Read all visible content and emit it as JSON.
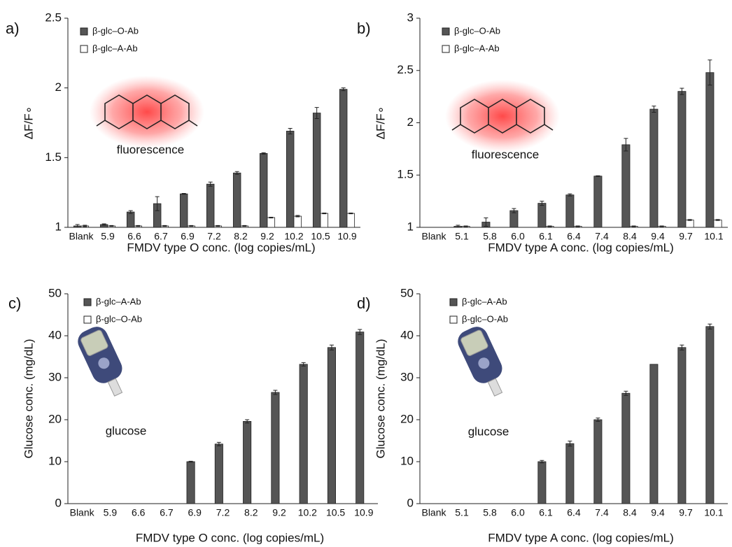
{
  "chart_data": [
    {
      "type": "bar",
      "panel_label": "a)",
      "y_label": "ΔF/F∘",
      "x_label": "FMDV type O conc. (log copies/mL)",
      "annotation": "fluorescence",
      "categories": [
        "Blank",
        "5.9",
        "6.6",
        "6.7",
        "6.9",
        "7.2",
        "8.2",
        "9.2",
        "10.2",
        "10.5",
        "10.9"
      ],
      "series": [
        {
          "name": "β-glc–O-Ab",
          "color": "#555555",
          "values": [
            1.01,
            1.02,
            1.11,
            1.17,
            1.24,
            1.31,
            1.39,
            1.53,
            1.69,
            1.82,
            1.99
          ],
          "errors": [
            0.01,
            0.005,
            0.01,
            0.05,
            0.003,
            0.015,
            0.01,
            0.005,
            0.02,
            0.04,
            0.01
          ]
        },
        {
          "name": "β-glc–A-Ab",
          "color": "#ffffff",
          "values": [
            1.01,
            1.01,
            1.01,
            1.01,
            1.01,
            1.01,
            1.01,
            1.07,
            1.08,
            1.1,
            1.1
          ],
          "errors": [
            0.005,
            0.003,
            0.003,
            0.003,
            0.003,
            0.003,
            0.003,
            0.003,
            0.005,
            0.003,
            0.003
          ]
        }
      ],
      "ylim": [
        1,
        2.5
      ],
      "yticks": [
        1,
        1.5,
        2,
        2.5
      ]
    },
    {
      "type": "bar",
      "panel_label": "b)",
      "y_label": "ΔF/F∘",
      "x_label": "FMDV type A conc. (log copies/mL)",
      "annotation": "fluorescence",
      "categories": [
        "Blank",
        "5.1",
        "5.8",
        "6.0",
        "6.1",
        "6.4",
        "7.4",
        "8.4",
        "9.4",
        "9.7",
        "10.1"
      ],
      "series": [
        {
          "name": "β-glc–O-Ab",
          "color": "#555555",
          "values": [
            1.0,
            1.01,
            1.05,
            1.16,
            1.23,
            1.31,
            1.49,
            1.79,
            2.13,
            2.3,
            2.48
          ],
          "errors": [
            0,
            0.01,
            0.04,
            0.02,
            0.02,
            0.01,
            0.003,
            0.06,
            0.03,
            0.03,
            0.12
          ]
        },
        {
          "name": "β-glc–A-Ab",
          "color": "#ffffff",
          "values": [
            1.0,
            1.01,
            1.0,
            1.0,
            1.01,
            1.01,
            1.0,
            1.01,
            1.01,
            1.07,
            1.07
          ],
          "errors": [
            0,
            0.003,
            0,
            0,
            0.003,
            0.003,
            0,
            0.003,
            0.003,
            0.005,
            0.005
          ]
        }
      ],
      "ylim": [
        1,
        3
      ],
      "yticks": [
        1,
        1.5,
        2,
        2.5,
        3
      ]
    },
    {
      "type": "bar",
      "panel_label": "c)",
      "y_label": "Glucose conc. (mg/dL)",
      "x_label": "FMDV type O conc. (log copies/mL)",
      "annotation": "glucose",
      "categories": [
        "Blank",
        "5.9",
        "6.6",
        "6.7",
        "6.9",
        "7.2",
        "8.2",
        "9.2",
        "10.2",
        "10.5",
        "10.9"
      ],
      "series": [
        {
          "name": "β-glc–A-Ab",
          "color": "#555555",
          "values": [
            0,
            0,
            0,
            0,
            10,
            14.2,
            19.6,
            26.5,
            33.2,
            37.2,
            40.9
          ],
          "errors": [
            0,
            0,
            0,
            0,
            0.1,
            0.4,
            0.4,
            0.5,
            0.4,
            0.6,
            0.6
          ]
        },
        {
          "name": "β-glc–O-Ab",
          "color": "#ffffff",
          "values": [
            0,
            0,
            0,
            0,
            0,
            0,
            0,
            0,
            0,
            0,
            0
          ],
          "errors": [
            0,
            0,
            0,
            0,
            0,
            0,
            0,
            0,
            0,
            0,
            0
          ]
        }
      ],
      "ylim": [
        0,
        50
      ],
      "yticks": [
        0,
        10,
        20,
        30,
        40,
        50
      ]
    },
    {
      "type": "bar",
      "panel_label": "d)",
      "y_label": "Glucose conc. (mg/dL)",
      "x_label": "FMDV type A conc. (log copies/mL)",
      "annotation": "glucose",
      "categories": [
        "Blank",
        "5.1",
        "5.8",
        "6.0",
        "6.1",
        "6.4",
        "7.4",
        "8.4",
        "9.4",
        "9.7",
        "10.1"
      ],
      "series": [
        {
          "name": "β-glc–A-Ab",
          "color": "#555555",
          "values": [
            0,
            0,
            0,
            0,
            10,
            14.3,
            20,
            26.3,
            33.2,
            37.2,
            42.2
          ],
          "errors": [
            0,
            0,
            0,
            0,
            0.3,
            0.6,
            0.4,
            0.5,
            0,
            0.6,
            0.6
          ]
        },
        {
          "name": "β-glc–O-Ab",
          "color": "#ffffff",
          "values": [
            0,
            0,
            0,
            0,
            0,
            0,
            0,
            0,
            0,
            0,
            0
          ],
          "errors": [
            0,
            0,
            0,
            0,
            0,
            0,
            0,
            0,
            0,
            0,
            0
          ]
        }
      ],
      "ylim": [
        0,
        50
      ],
      "yticks": [
        0,
        10,
        20,
        30,
        40,
        50
      ]
    }
  ]
}
